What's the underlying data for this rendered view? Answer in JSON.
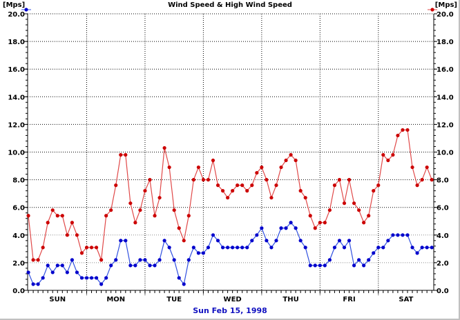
{
  "chart_data": {
    "type": "line",
    "title": "Wind Speed & High Wind Speed",
    "ylabel_left": "[Mps]",
    "ylabel_right": "[Mps]",
    "xlabel": "Sun Feb 15, 1998",
    "ylim": [
      0,
      20
    ],
    "yticks": [
      "0.0",
      "2.0",
      "4.0",
      "6.0",
      "8.0",
      "10.0",
      "12.0",
      "14.0",
      "16.0",
      "18.0",
      "20.0"
    ],
    "ytick_step": 2,
    "yminor_step": 0.4,
    "x_unit": "hours",
    "x_step_hours": 2,
    "xlim_hours": [
      -0.3,
      166.8
    ],
    "day_labels": [
      "SUN",
      "MON",
      "TUE",
      "WED",
      "THU",
      "FRI",
      "SAT"
    ],
    "grid": true,
    "series": [
      {
        "name": "Wind Speed",
        "axis": "left",
        "color": "#0000cc",
        "line_color": "#3050e0",
        "values": [
          1.3,
          0.45,
          0.45,
          0.9,
          1.8,
          1.3,
          1.8,
          1.8,
          1.3,
          2.2,
          1.3,
          0.9,
          0.9,
          0.9,
          0.9,
          0.45,
          0.9,
          1.8,
          2.2,
          3.6,
          3.6,
          1.8,
          1.8,
          2.2,
          2.2,
          1.8,
          1.8,
          2.2,
          3.6,
          3.1,
          2.2,
          0.9,
          0.45,
          2.2,
          3.1,
          2.7,
          2.7,
          3.1,
          4.0,
          3.6,
          3.1,
          3.1,
          3.1,
          3.1,
          3.1,
          3.1,
          3.6,
          4.0,
          4.5,
          3.6,
          3.1,
          3.6,
          4.5,
          4.5,
          4.9,
          4.5,
          3.6,
          3.1,
          1.8,
          1.8,
          1.8,
          1.8,
          2.2,
          3.1,
          3.6,
          3.1,
          3.6,
          1.8,
          2.2,
          1.8,
          2.2,
          2.7,
          3.1,
          3.1,
          3.6,
          4.0,
          4.0,
          4.0,
          4.0,
          3.1,
          2.7,
          3.1,
          3.1,
          3.1
        ]
      },
      {
        "name": "High Wind Speed",
        "axis": "right",
        "color": "#cc0000",
        "line_color": "#e04848",
        "values": [
          5.4,
          2.2,
          2.2,
          3.1,
          4.9,
          5.8,
          5.4,
          5.4,
          4.0,
          4.9,
          4.0,
          2.7,
          3.1,
          3.1,
          3.1,
          2.2,
          5.4,
          5.8,
          7.6,
          9.8,
          9.8,
          6.3,
          4.9,
          5.8,
          7.2,
          8.0,
          5.4,
          6.7,
          10.3,
          8.9,
          5.8,
          4.5,
          3.6,
          5.4,
          8.0,
          8.9,
          8.0,
          8.0,
          9.4,
          7.6,
          7.2,
          6.7,
          7.2,
          7.6,
          7.6,
          7.2,
          7.6,
          8.5,
          8.9,
          8.0,
          6.7,
          7.6,
          8.9,
          9.4,
          9.8,
          9.4,
          7.2,
          6.7,
          5.4,
          4.5,
          4.9,
          4.9,
          5.8,
          7.6,
          8.0,
          6.3,
          8.0,
          6.3,
          5.8,
          4.9,
          5.4,
          7.2,
          7.6,
          9.8,
          9.4,
          9.8,
          11.2,
          11.6,
          11.6,
          8.9,
          7.6,
          8.0,
          8.9,
          8.0
        ]
      }
    ]
  }
}
